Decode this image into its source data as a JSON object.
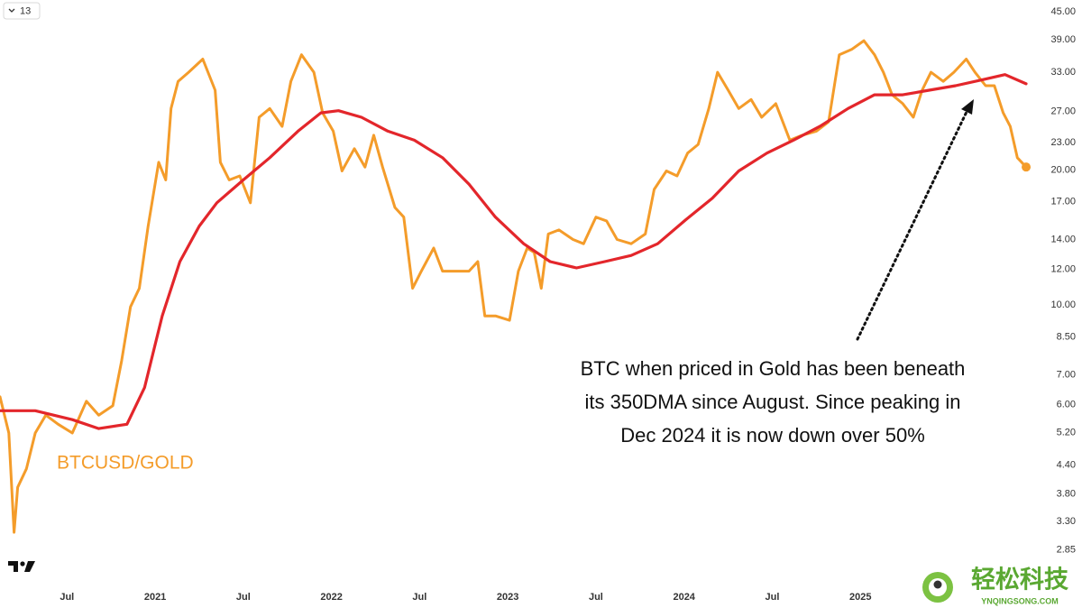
{
  "chart_data": {
    "type": "line",
    "interval_label": "13",
    "yscale": "log",
    "xlim": [
      2020.12,
      2025.95
    ],
    "ylim": [
      2.42,
      47.8
    ],
    "xticks": [
      {
        "value": 2020.5,
        "label": "Jul"
      },
      2021,
      {
        "value": 2021.5,
        "label": "Jul"
      },
      2022,
      {
        "value": 2022.5,
        "label": "Jul"
      },
      2023,
      {
        "value": 2023.5,
        "label": "Jul"
      },
      2024,
      {
        "value": 2024.5,
        "label": "Jul"
      },
      2025
    ],
    "yticks": [
      {
        "value": 45,
        "label": "45.00"
      },
      {
        "value": 39,
        "label": "39.00"
      },
      {
        "value": 33,
        "label": "33.00"
      },
      {
        "value": 27,
        "label": "27.00"
      },
      {
        "value": 23,
        "label": "23.00"
      },
      {
        "value": 20,
        "label": "20.00"
      },
      {
        "value": 17,
        "label": "17.00"
      },
      {
        "value": 14,
        "label": "14.00"
      },
      {
        "value": 12,
        "label": "12.00"
      },
      {
        "value": 10,
        "label": "10.00"
      },
      {
        "value": 8.5,
        "label": "8.50"
      },
      {
        "value": 7,
        "label": "7.00"
      },
      {
        "value": 6,
        "label": "6.00"
      },
      {
        "value": 5.2,
        "label": "5.20"
      },
      {
        "value": 4.4,
        "label": "4.40"
      },
      {
        "value": 3.8,
        "label": "3.80"
      },
      {
        "value": 3.3,
        "label": "3.30"
      },
      {
        "value": 2.85,
        "label": "2.85"
      }
    ],
    "annotation": [
      "BTC when priced in Gold has been beneath",
      "its 350DMA since August. Since peaking in",
      "Dec 2024 it is now down over 50%"
    ],
    "series": [
      {
        "name": "BTCUSD/GOLD",
        "color": "#f49c2a",
        "x": [
          2020.12,
          2020.17,
          2020.2,
          2020.22,
          2020.27,
          2020.32,
          2020.38,
          2020.45,
          2020.53,
          2020.61,
          2020.68,
          2020.76,
          2020.81,
          2020.86,
          2020.91,
          2020.96,
          2021.02,
          2021.06,
          2021.09,
          2021.13,
          2021.19,
          2021.27,
          2021.34,
          2021.37,
          2021.42,
          2021.48,
          2021.54,
          2021.59,
          2021.65,
          2021.72,
          2021.77,
          2021.83,
          2021.9,
          2021.95,
          2022.01,
          2022.06,
          2022.13,
          2022.19,
          2022.24,
          2022.29,
          2022.36,
          2022.41,
          2022.46,
          2022.51,
          2022.58,
          2022.63,
          2022.7,
          2022.78,
          2022.83,
          2022.87,
          2022.93,
          2023.01,
          2023.06,
          2023.11,
          2023.15,
          2023.19,
          2023.23,
          2023.29,
          2023.37,
          2023.43,
          2023.5,
          2023.56,
          2023.62,
          2023.7,
          2023.78,
          2023.83,
          2023.9,
          2023.96,
          2024.02,
          2024.08,
          2024.14,
          2024.19,
          2024.25,
          2024.31,
          2024.38,
          2024.44,
          2024.52,
          2024.6,
          2024.67,
          2024.75,
          2024.82,
          2024.88,
          2024.95,
          2025.02,
          2025.08,
          2025.13,
          2025.18,
          2025.24,
          2025.3,
          2025.35,
          2025.4,
          2025.47,
          2025.53,
          2025.6,
          2025.65,
          2025.71,
          2025.76,
          2025.81,
          2025.85,
          2025.89,
          2025.94
        ],
        "values": [
          6.25,
          5.19,
          3.12,
          3.93,
          4.32,
          5.19,
          5.69,
          5.43,
          5.19,
          6.11,
          5.69,
          5.97,
          7.52,
          9.91,
          10.9,
          15.0,
          20.8,
          19.0,
          27.4,
          31.5,
          33.0,
          35.3,
          30.1,
          20.8,
          19.0,
          19.4,
          16.9,
          26.2,
          27.4,
          25.0,
          31.5,
          36.1,
          33.0,
          26.8,
          24.4,
          19.9,
          22.3,
          20.3,
          23.9,
          20.3,
          16.5,
          15.7,
          10.9,
          11.9,
          13.4,
          11.9,
          11.9,
          11.9,
          12.5,
          9.46,
          9.46,
          9.25,
          11.9,
          13.4,
          13.1,
          10.9,
          14.4,
          14.7,
          14.0,
          13.7,
          15.7,
          15.4,
          14.0,
          13.7,
          14.4,
          18.1,
          19.9,
          19.4,
          21.8,
          22.8,
          27.4,
          33.0,
          30.1,
          27.4,
          28.7,
          26.2,
          28.1,
          23.3,
          23.9,
          24.4,
          25.6,
          36.1,
          37.1,
          38.8,
          36.1,
          33.0,
          29.4,
          28.1,
          26.2,
          30.1,
          33.0,
          31.5,
          33.0,
          35.3,
          33.0,
          30.8,
          30.8,
          26.8,
          25.0,
          21.3,
          20.3
        ]
      },
      {
        "color": "#e3262b",
        "x": [
          2020.12,
          2020.32,
          2020.53,
          2020.68,
          2020.84,
          2020.94,
          2021.04,
          2021.14,
          2021.25,
          2021.35,
          2021.5,
          2021.65,
          2021.81,
          2021.94,
          2022.04,
          2022.17,
          2022.32,
          2022.47,
          2022.63,
          2022.78,
          2022.93,
          2023.09,
          2023.24,
          2023.39,
          2023.55,
          2023.7,
          2023.85,
          2024.01,
          2024.16,
          2024.31,
          2024.47,
          2024.62,
          2024.77,
          2024.93,
          2025.08,
          2025.24,
          2025.39,
          2025.54,
          2025.7,
          2025.82,
          2025.94
        ],
        "values": [
          5.82,
          5.82,
          5.56,
          5.31,
          5.43,
          6.55,
          9.46,
          12.5,
          15.0,
          16.9,
          19.0,
          21.3,
          24.4,
          26.8,
          27.1,
          26.2,
          24.4,
          23.3,
          21.3,
          18.6,
          15.7,
          13.7,
          12.5,
          12.1,
          12.5,
          12.9,
          13.7,
          15.5,
          17.3,
          19.9,
          21.8,
          23.3,
          25.0,
          27.4,
          29.4,
          29.4,
          30.1,
          30.8,
          31.8,
          32.6,
          31.1
        ]
      }
    ]
  },
  "watermark": {
    "title": "轻松科技",
    "url": "YNQINGSONG.COM"
  }
}
